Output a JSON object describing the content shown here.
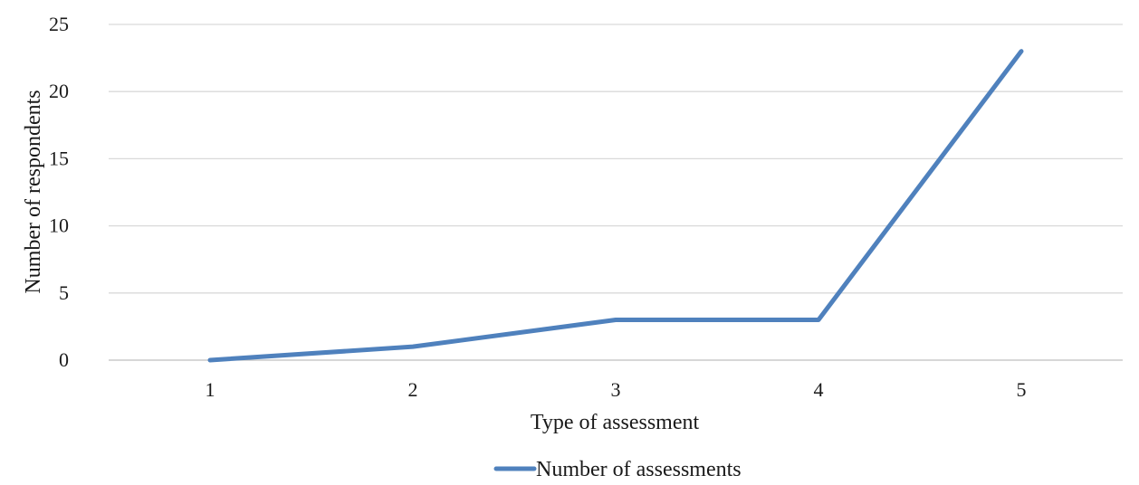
{
  "chart_data": {
    "type": "line",
    "title": "",
    "xlabel": "Type of assessment",
    "ylabel": "Number of respondents",
    "categories": [
      "1",
      "2",
      "3",
      "4",
      "5"
    ],
    "series": [
      {
        "name": "Number of assessments",
        "values": [
          0,
          1,
          3,
          3,
          23
        ],
        "color": "#4f81bd"
      }
    ],
    "ylim": [
      0,
      25
    ],
    "yticks": [
      0,
      5,
      10,
      15,
      20,
      25
    ],
    "grid": true,
    "legend": "bottom"
  }
}
